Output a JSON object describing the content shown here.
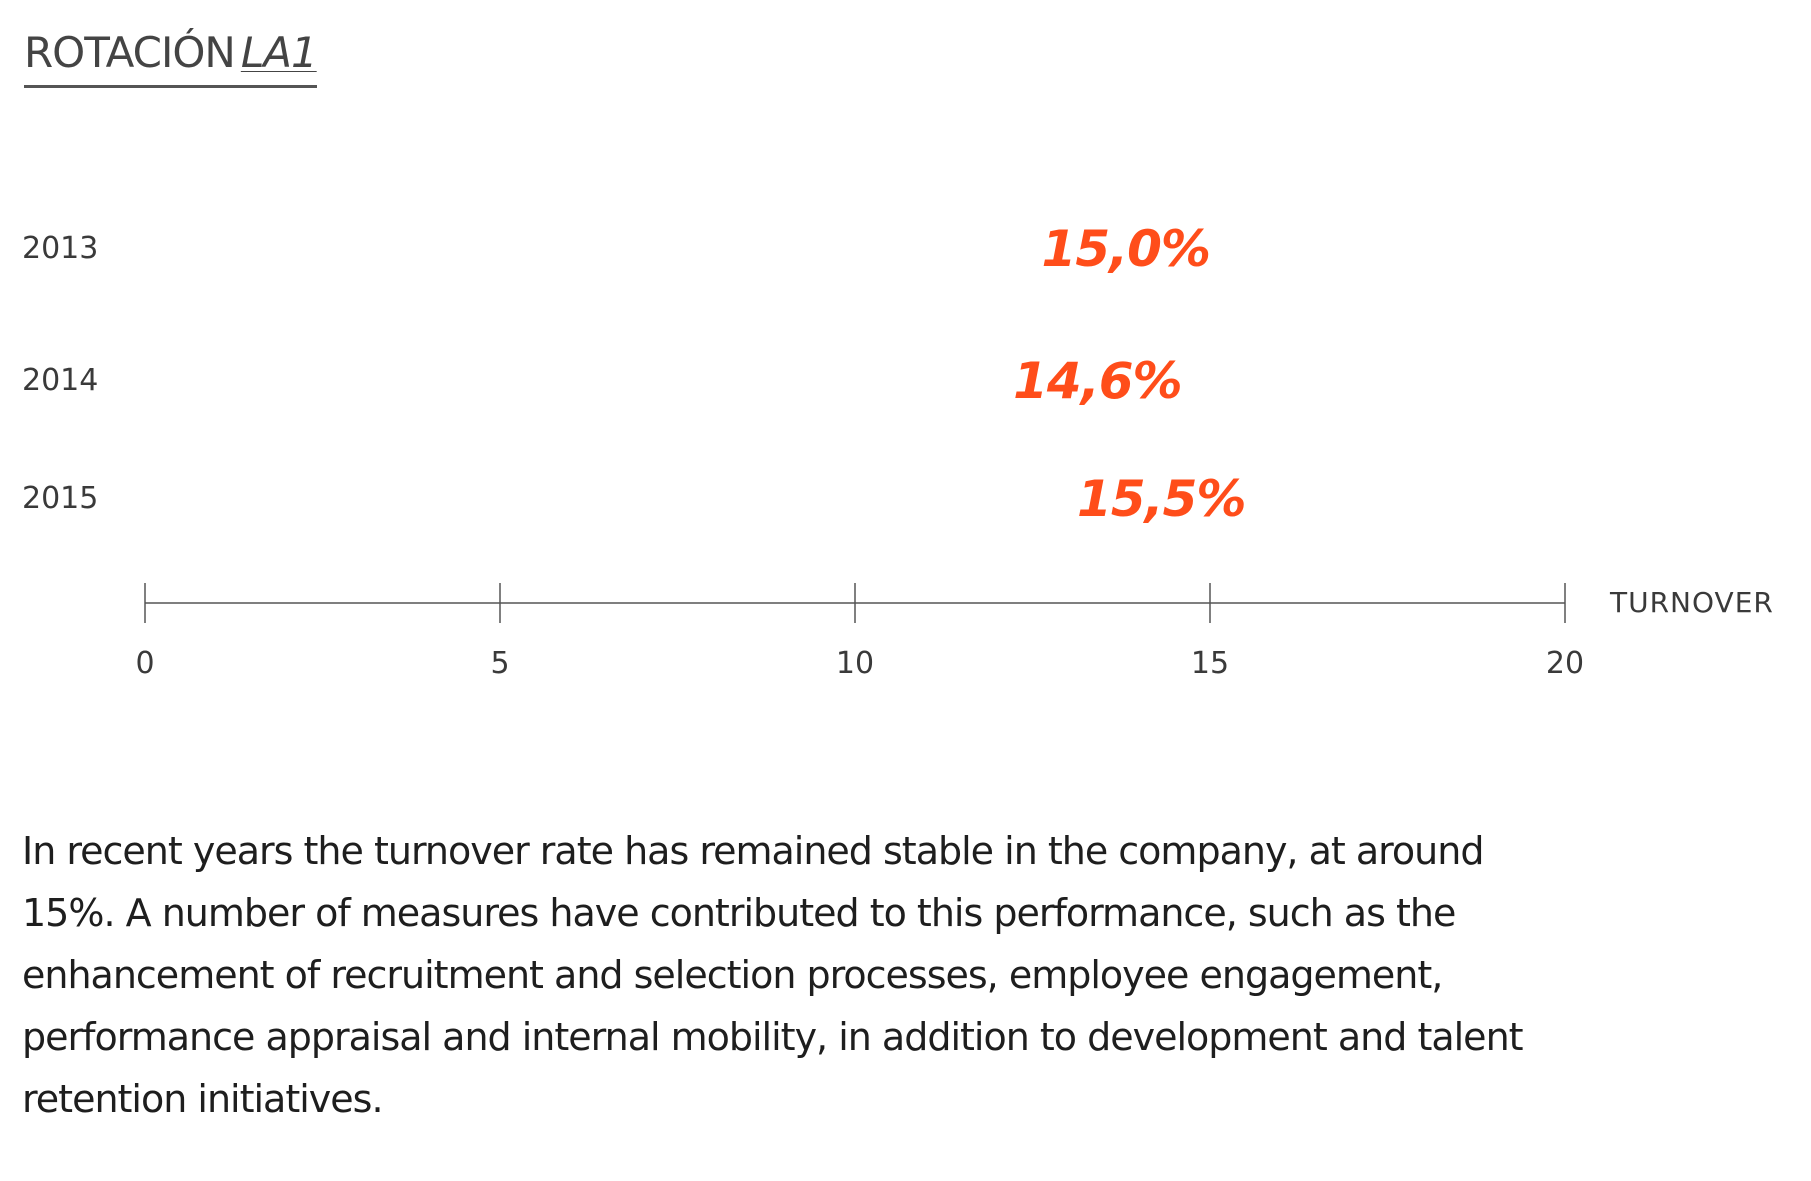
{
  "header": {
    "title": "ROTACIÓN",
    "code": "LA1"
  },
  "colors": {
    "accent": "#ff4d1a",
    "text": "#3a3a3a",
    "axis": "#555555"
  },
  "chart_data": {
    "type": "bar",
    "orientation": "horizontal",
    "categories": [
      "2013",
      "2014",
      "2015"
    ],
    "values": [
      15.0,
      14.6,
      15.5
    ],
    "value_labels": [
      "15,0%",
      "14,6%",
      "15,5%"
    ],
    "xlabel": "TURNOVER",
    "xlim": [
      0,
      20
    ],
    "xticks": [
      0,
      5,
      10,
      15,
      20
    ],
    "xtick_labels": [
      "0",
      "5",
      "10",
      "15",
      "20"
    ],
    "grid": false,
    "bars_visible": false
  },
  "body_text": "In recent years the turnover rate has remained stable in the company, at around 15%. A number of measures have contributed to this performance, such as the enhancement of recruitment and selection processes, employee engagement, performance appraisal and internal mobility, in addition to development and talent retention initiatives."
}
